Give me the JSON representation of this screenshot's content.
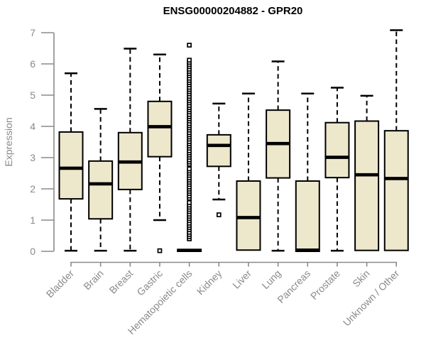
{
  "chart_data": {
    "type": "box",
    "title": "ENSG00000204882 - GPR20",
    "ylabel": "Expression",
    "xlabel": "",
    "ylim": [
      0,
      7
    ],
    "yticks": [
      0,
      1,
      2,
      3,
      4,
      5,
      6,
      7
    ],
    "grid": false,
    "legend": "none",
    "colors": {
      "box_fill": "#EDE7CC",
      "box_border": "#000000",
      "median": "#000000",
      "whisker": "#000000",
      "axis": "#8a8a8a",
      "tick_text": "#8a8a8a",
      "title_text": "#000000",
      "background": "#ffffff"
    },
    "categories": [
      "Bladder",
      "Brain",
      "Breast",
      "Gastric",
      "Hematopoietic cells",
      "Kidney",
      "Liver",
      "Lung",
      "Pancreas",
      "Prostate",
      "Skin",
      "Unknown / Other"
    ],
    "boxes": [
      {
        "label": "Bladder",
        "min": 0.02,
        "q1": 1.68,
        "median": 2.66,
        "q3": 3.82,
        "max": 5.7,
        "outliers": []
      },
      {
        "label": "Brain",
        "min": 0.02,
        "q1": 1.04,
        "median": 2.16,
        "q3": 2.89,
        "max": 4.56,
        "outliers": []
      },
      {
        "label": "Breast",
        "min": 0.02,
        "q1": 1.98,
        "median": 2.86,
        "q3": 3.8,
        "max": 6.49,
        "outliers": []
      },
      {
        "label": "Gastric",
        "min": 1.0,
        "q1": 3.03,
        "median": 3.99,
        "q3": 4.8,
        "max": 6.3,
        "outliers": [
          0.02
        ]
      },
      {
        "label": "Hematopoietic cells",
        "min": 0.0,
        "q1": 0.0,
        "median": 0.03,
        "q3": 0.06,
        "max": 0.06,
        "outliers": [
          0.4,
          0.47,
          0.54,
          0.61,
          0.69,
          0.76,
          0.83,
          0.9,
          0.98,
          1.05,
          1.12,
          1.19,
          1.27,
          1.34,
          1.41,
          1.48,
          1.56,
          1.7,
          1.77,
          1.85,
          1.92,
          1.99,
          2.06,
          2.14,
          2.21,
          2.28,
          2.35,
          2.43,
          2.5,
          2.57,
          2.64,
          2.79,
          2.86,
          2.93,
          3.01,
          3.08,
          3.15,
          3.22,
          3.3,
          3.37,
          3.44,
          3.51,
          3.59,
          3.66,
          3.73,
          3.8,
          3.88,
          3.95,
          4.02,
          4.09,
          4.17,
          4.24,
          4.31,
          4.38,
          4.46,
          4.53,
          4.6,
          4.67,
          4.75,
          4.82,
          4.89,
          4.96,
          5.04,
          5.11,
          5.18,
          5.25,
          5.33,
          5.4,
          5.47,
          5.54,
          5.62,
          5.69,
          5.76,
          5.83,
          5.91,
          5.98,
          6.05,
          6.12,
          6.6
        ]
      },
      {
        "label": "Kidney",
        "min": 1.66,
        "q1": 2.72,
        "median": 3.39,
        "q3": 3.73,
        "max": 4.73,
        "outliers": [
          1.17
        ]
      },
      {
        "label": "Liver",
        "min": 0.04,
        "q1": 0.04,
        "median": 1.08,
        "q3": 2.25,
        "max": 5.05,
        "outliers": []
      },
      {
        "label": "Lung",
        "min": 0.02,
        "q1": 2.35,
        "median": 3.45,
        "q3": 4.52,
        "max": 6.08,
        "outliers": []
      },
      {
        "label": "Pancreas",
        "min": 0.0,
        "q1": 0.0,
        "median": 0.04,
        "q3": 2.25,
        "max": 5.05,
        "outliers": []
      },
      {
        "label": "Prostate",
        "min": 0.02,
        "q1": 2.36,
        "median": 3.01,
        "q3": 4.12,
        "max": 5.24,
        "outliers": []
      },
      {
        "label": "Skin",
        "min": 0.03,
        "q1": 0.03,
        "median": 2.45,
        "q3": 4.17,
        "max": 4.98,
        "outliers": []
      },
      {
        "label": "Unknown / Other",
        "min": 0.03,
        "q1": 0.03,
        "median": 2.33,
        "q3": 3.86,
        "max": 7.08,
        "outliers": []
      }
    ]
  }
}
